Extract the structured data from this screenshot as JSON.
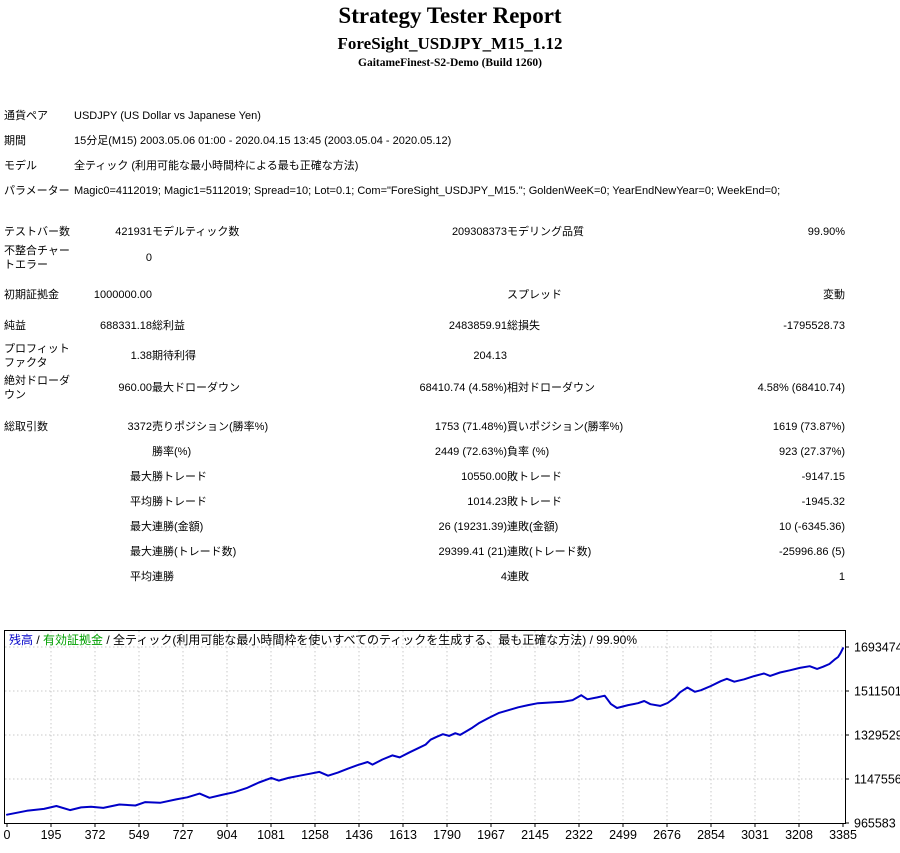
{
  "report": {
    "title": "Strategy Tester Report",
    "subtitle": "ForeSight_USDJPY_M15_1.12",
    "build": "GaitameFinest-S2-Demo (Build 1260)"
  },
  "table": {
    "rows": [
      {
        "wide": true,
        "cells": [
          "通貨ペア",
          "USDJPY (US Dollar vs Japanese Yen)"
        ]
      },
      {
        "wide": true,
        "cells": [
          "期間",
          "15分足(M15) 2003.05.06 01:00 - 2020.04.15 13:45 (2003.05.04 - 2020.05.12)"
        ]
      },
      {
        "wide": true,
        "cells": [
          "モデル",
          "全ティック (利用可能な最小時間枠による最も正確な方法)"
        ]
      },
      {
        "wide": true,
        "cells": [
          "パラメーター",
          "Magic0=4112019; Magic1=5112019; Spread=10; Lot=0.1; Com=\"ForeSight_USDJPY_M15.\"; GoldenWeeK=0; YearEndNewYear=0; WeekEnd=0;"
        ]
      },
      {
        "spacer": 16
      },
      {
        "cells": [
          "テストバー数",
          "421931",
          "モデルティック数",
          "209308373",
          "モデリング品質",
          "99.90%"
        ]
      },
      {
        "cells": [
          "不整合チャートエラー",
          "0",
          "",
          "",
          "",
          ""
        ]
      },
      {
        "spacer": 10
      },
      {
        "cells": [
          "初期証拠金",
          "1000000.00",
          "",
          "",
          "スプレッド",
          "変動"
        ]
      },
      {
        "spacer": 6
      },
      {
        "cells": [
          "純益",
          "688331.18",
          "総利益",
          "2483859.91",
          "総損失",
          "-1795528.73"
        ]
      },
      {
        "spacer": 4
      },
      {
        "cells": [
          "プロフィットファクタ",
          "1.38",
          "期待利得",
          "204.13",
          "",
          ""
        ]
      },
      {
        "spacer": 4
      },
      {
        "cells": [
          "絶対ドローダウン",
          "960.00",
          "最大ドローダウン",
          "68410.74 (4.58%)",
          "相対ドローダウン",
          "4.58% (68410.74)"
        ]
      },
      {
        "spacer": 12
      },
      {
        "cells": [
          "総取引数",
          "3372",
          "売りポジション(勝率%)",
          "1753 (71.48%)",
          "買いポジション(勝率%)",
          "1619 (73.87%)"
        ]
      },
      {
        "cells": [
          "",
          "",
          "勝率(%)",
          "2449 (72.63%)",
          "負率 (%)",
          "923 (27.37%)"
        ]
      },
      {
        "cells": [
          "",
          "最大",
          "勝トレード",
          "10550.00",
          "敗トレード",
          "-9147.15"
        ]
      },
      {
        "cells": [
          "",
          "平均",
          "勝トレード",
          "1014.23",
          "敗トレード",
          "-1945.32"
        ]
      },
      {
        "cells": [
          "",
          "最大",
          "連勝(金額)",
          "26 (19231.39)",
          "連敗(金額)",
          "10 (-6345.36)"
        ]
      },
      {
        "cells": [
          "",
          "最大",
          "連勝(トレード数)",
          "29399.41 (21)",
          "連敗(トレード数)",
          "-25996.86 (5)"
        ]
      },
      {
        "cells": [
          "",
          "平均",
          "連勝",
          "4",
          "連敗",
          "1"
        ]
      }
    ]
  },
  "chart_data": {
    "type": "line",
    "legend": {
      "balance_label": "残高",
      "equity_label": "有効証拠金",
      "separator": " / ",
      "description": "全ティック(利用可能な最小時間枠を使いすべてのティックを生成する、最も正確な方法)",
      "quality": "99.90%"
    },
    "colors": {
      "balance": "#0000C8",
      "equity": "#00A000",
      "grid": "#C9C9C9",
      "border": "#000000",
      "text": "#000000"
    },
    "x_ticks": [
      0,
      195,
      372,
      549,
      727,
      904,
      1081,
      1258,
      1436,
      1613,
      1790,
      1967,
      2145,
      2322,
      2499,
      2676,
      2854,
      3031,
      3208,
      3385
    ],
    "y_ticks": [
      1693474,
      1511501,
      1329529,
      1147556,
      965583
    ],
    "x_max": 3385,
    "y_bottom": 965583,
    "y_tick_step": 181973,
    "grid": true,
    "legend_position": "top-left",
    "series": [
      {
        "name": "残高",
        "color": "#0000C8",
        "points": [
          [
            0,
            1000000
          ],
          [
            80,
            1016000
          ],
          [
            150,
            1024000
          ],
          [
            200,
            1036000
          ],
          [
            255,
            1019000
          ],
          [
            300,
            1030000
          ],
          [
            340,
            1033000
          ],
          [
            390,
            1028000
          ],
          [
            455,
            1042000
          ],
          [
            520,
            1038000
          ],
          [
            560,
            1052000
          ],
          [
            620,
            1049000
          ],
          [
            685,
            1063000
          ],
          [
            730,
            1072000
          ],
          [
            780,
            1087000
          ],
          [
            820,
            1070000
          ],
          [
            870,
            1082000
          ],
          [
            920,
            1093000
          ],
          [
            970,
            1110000
          ],
          [
            1020,
            1133000
          ],
          [
            1070,
            1152000
          ],
          [
            1100,
            1141000
          ],
          [
            1140,
            1152000
          ],
          [
            1185,
            1161000
          ],
          [
            1225,
            1169000
          ],
          [
            1265,
            1177000
          ],
          [
            1300,
            1161000
          ],
          [
            1340,
            1174000
          ],
          [
            1380,
            1190000
          ],
          [
            1420,
            1205000
          ],
          [
            1460,
            1218000
          ],
          [
            1480,
            1207000
          ],
          [
            1520,
            1228000
          ],
          [
            1560,
            1245000
          ],
          [
            1590,
            1237000
          ],
          [
            1630,
            1258000
          ],
          [
            1665,
            1275000
          ],
          [
            1695,
            1290000
          ],
          [
            1715,
            1310000
          ],
          [
            1740,
            1322000
          ],
          [
            1765,
            1333000
          ],
          [
            1790,
            1326000
          ],
          [
            1815,
            1337000
          ],
          [
            1835,
            1330000
          ],
          [
            1860,
            1345000
          ],
          [
            1885,
            1360000
          ],
          [
            1910,
            1378000
          ],
          [
            1950,
            1400000
          ],
          [
            1990,
            1420000
          ],
          [
            2030,
            1432000
          ],
          [
            2070,
            1444000
          ],
          [
            2110,
            1453000
          ],
          [
            2150,
            1461000
          ],
          [
            2200,
            1464000
          ],
          [
            2250,
            1467000
          ],
          [
            2290,
            1474000
          ],
          [
            2325,
            1494000
          ],
          [
            2350,
            1477000
          ],
          [
            2390,
            1485000
          ],
          [
            2420,
            1492000
          ],
          [
            2445,
            1458000
          ],
          [
            2470,
            1441000
          ],
          [
            2515,
            1453000
          ],
          [
            2555,
            1461000
          ],
          [
            2580,
            1470000
          ],
          [
            2605,
            1457000
          ],
          [
            2645,
            1450000
          ],
          [
            2675,
            1462000
          ],
          [
            2705,
            1484000
          ],
          [
            2725,
            1506000
          ],
          [
            2755,
            1526000
          ],
          [
            2785,
            1508000
          ],
          [
            2810,
            1515000
          ],
          [
            2850,
            1532000
          ],
          [
            2890,
            1552000
          ],
          [
            2915,
            1562000
          ],
          [
            2945,
            1550000
          ],
          [
            2985,
            1560000
          ],
          [
            3025,
            1573000
          ],
          [
            3065,
            1584000
          ],
          [
            3090,
            1574000
          ],
          [
            3130,
            1588000
          ],
          [
            3170,
            1597000
          ],
          [
            3210,
            1607000
          ],
          [
            3250,
            1614000
          ],
          [
            3280,
            1603000
          ],
          [
            3305,
            1612000
          ],
          [
            3330,
            1623000
          ],
          [
            3350,
            1641000
          ],
          [
            3365,
            1652000
          ],
          [
            3375,
            1668000
          ],
          [
            3385,
            1688331
          ]
        ]
      }
    ]
  }
}
